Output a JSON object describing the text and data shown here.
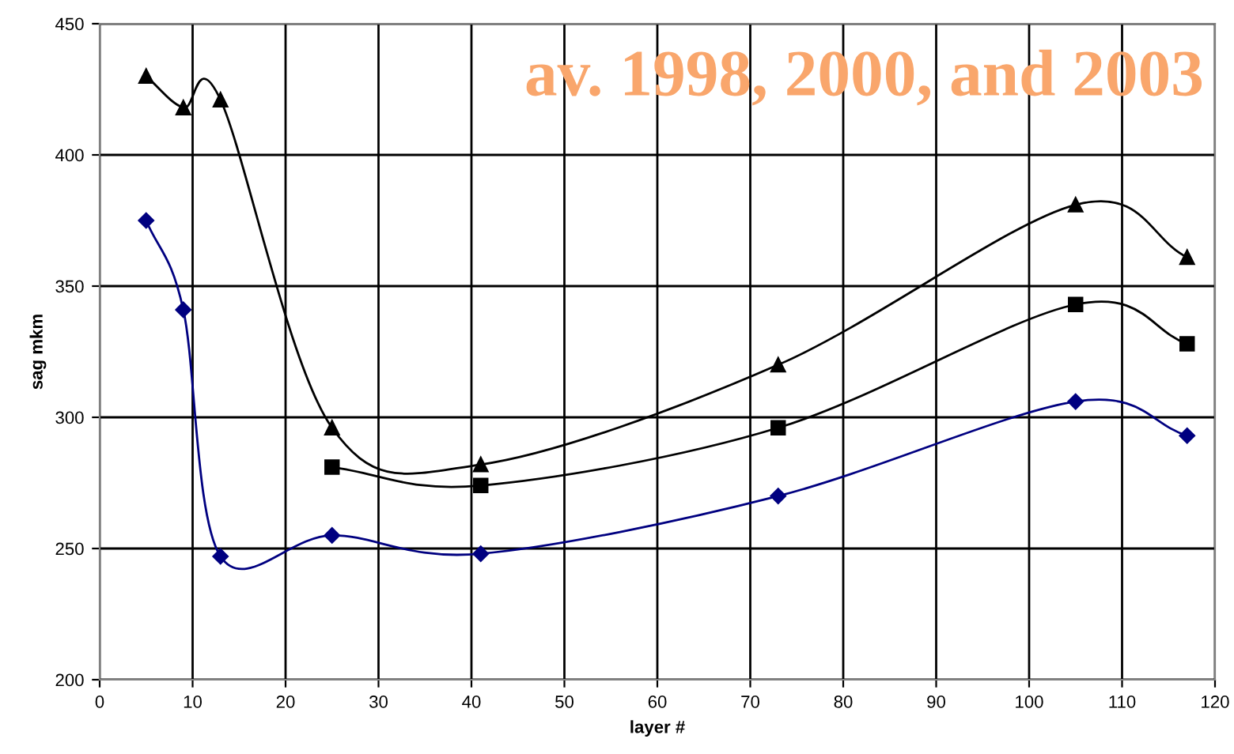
{
  "chart_data": {
    "type": "line",
    "title": "av. 1998, 2000, and 2003",
    "xlabel": "layer #",
    "ylabel": "sag mkm",
    "series": [
      {
        "color": "#000000",
        "marker": "triangle",
        "x": [
          5,
          9,
          13,
          25,
          41,
          73,
          105,
          117
        ],
        "values": [
          430,
          418,
          421,
          296,
          282,
          320,
          381,
          361
        ]
      },
      {
        "color": "#000000",
        "marker": "square",
        "x": [
          25,
          41,
          73,
          105,
          117
        ],
        "values": [
          281,
          274,
          296,
          343,
          328
        ]
      },
      {
        "color": "#000080",
        "marker": "diamond",
        "x": [
          5,
          9,
          13,
          25,
          41,
          73,
          105,
          117
        ],
        "values": [
          375,
          341,
          247,
          255,
          248,
          270,
          306,
          293
        ]
      }
    ],
    "xlim": [
      0,
      120
    ],
    "xticks": [
      0,
      10,
      20,
      30,
      40,
      50,
      60,
      70,
      80,
      90,
      100,
      110,
      120
    ],
    "ylim": [
      200,
      450
    ],
    "yticks": [
      200,
      250,
      300,
      350,
      400,
      450
    ],
    "grid": true
  }
}
